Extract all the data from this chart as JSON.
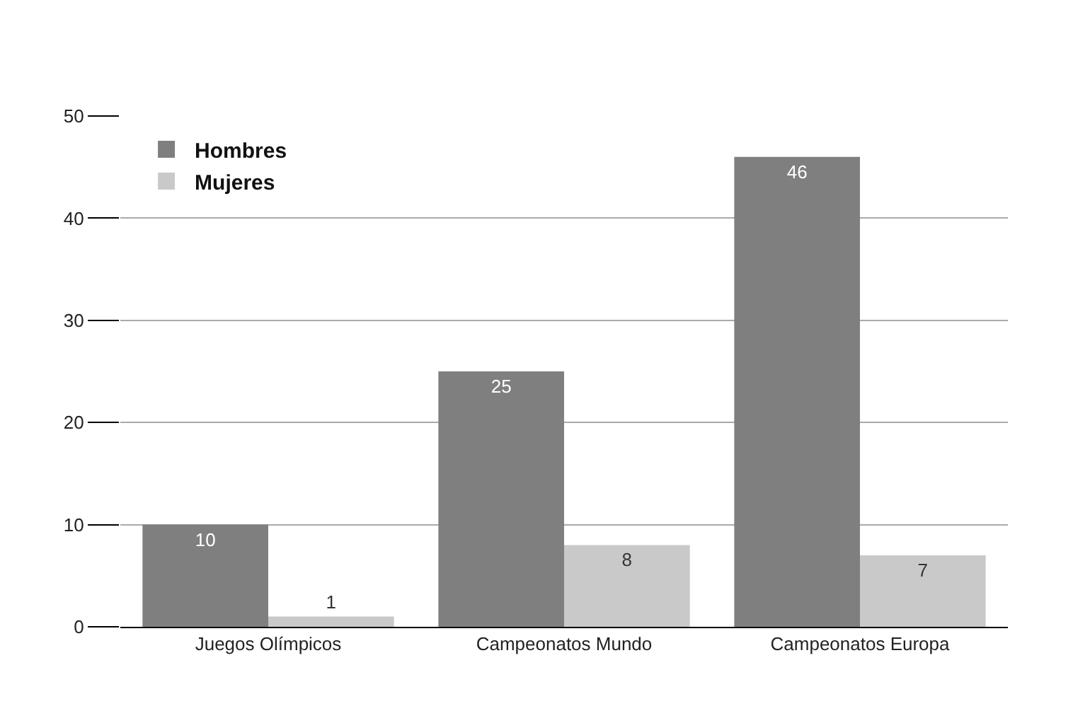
{
  "chart_data": {
    "type": "bar",
    "categories": [
      "Juegos Olímpicos",
      "Campeonatos Mundo",
      "Campeonatos Europa"
    ],
    "series": [
      {
        "name": "Hombres",
        "color": "#7f7f7f",
        "values": [
          10,
          25,
          46
        ]
      },
      {
        "name": "Mujeres",
        "color": "#c9c9c9",
        "values": [
          1,
          8,
          7
        ]
      }
    ],
    "ylim": [
      0,
      50
    ],
    "yticks": [
      0,
      10,
      20,
      30,
      40,
      50
    ],
    "grid": "y",
    "legend": "top left",
    "data_labels": true
  }
}
